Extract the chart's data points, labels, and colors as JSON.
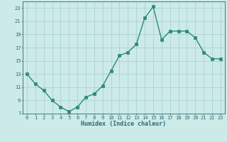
{
  "x": [
    0,
    1,
    2,
    3,
    4,
    5,
    6,
    7,
    8,
    9,
    10,
    11,
    12,
    13,
    14,
    15,
    16,
    17,
    18,
    19,
    20,
    21,
    22,
    23
  ],
  "y": [
    13,
    11.5,
    10.5,
    9,
    8,
    7.3,
    8,
    9.5,
    10,
    11.2,
    13.5,
    15.8,
    16.3,
    17.5,
    21.5,
    23.2,
    18.2,
    19.5,
    19.5,
    19.5,
    18.5,
    16.3,
    15.3,
    15.3
  ],
  "line_color": "#2e8b71",
  "bg_color": "#cceae8",
  "grid_color": "#aad4d0",
  "xlabel": "Humidex (Indice chaleur)",
  "ylim": [
    7,
    24
  ],
  "xlim": [
    -0.5,
    23.5
  ],
  "yticks": [
    7,
    9,
    11,
    13,
    15,
    17,
    19,
    21,
    23
  ],
  "xticks": [
    0,
    1,
    2,
    3,
    4,
    5,
    6,
    7,
    8,
    9,
    10,
    11,
    12,
    13,
    14,
    15,
    16,
    17,
    18,
    19,
    20,
    21,
    22,
    23
  ],
  "font_color": "#2a6b71",
  "marker": "s",
  "markersize": 2.2,
  "linewidth": 1.0,
  "tick_fontsize": 5.0,
  "xlabel_fontsize": 6.0
}
